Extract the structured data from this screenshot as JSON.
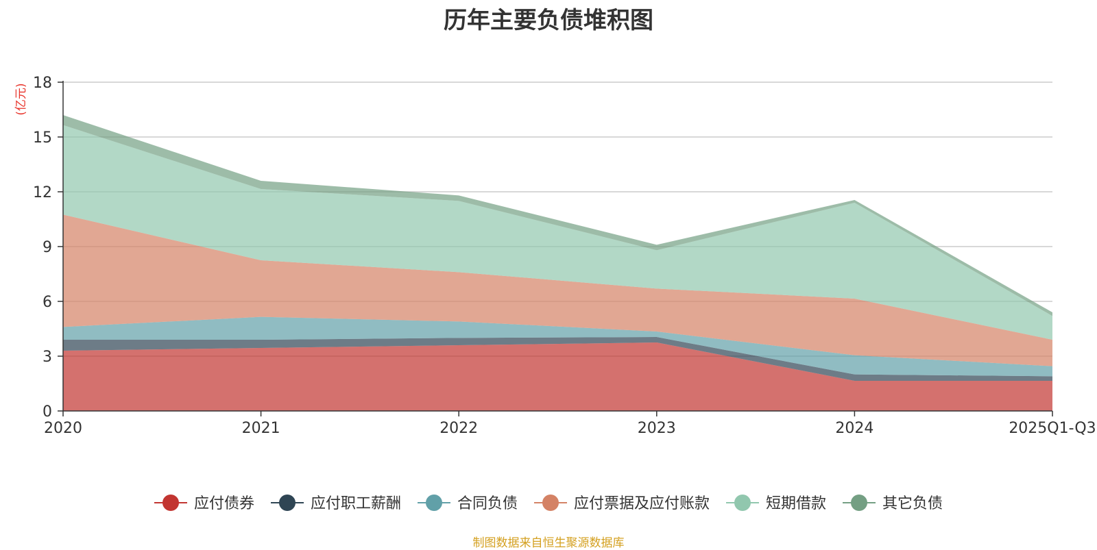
{
  "chart_data": {
    "type": "area",
    "stacked": true,
    "title": "历年主要负债堆积图",
    "ylabel": "(亿元)",
    "xlabel": "",
    "ylim": [
      0,
      18
    ],
    "yticks": [
      0,
      3,
      6,
      9,
      12,
      15,
      18
    ],
    "categories": [
      "2020",
      "2021",
      "2022",
      "2023",
      "2024",
      "2025Q1-Q3"
    ],
    "grid": true,
    "legend_position": "bottom",
    "series": [
      {
        "name": "应付债券",
        "color": "#c23531",
        "values": [
          3.3,
          3.45,
          3.6,
          3.75,
          1.65,
          1.65
        ]
      },
      {
        "name": "应付职工薪酬",
        "color": "#2f4554",
        "values": [
          0.6,
          0.45,
          0.4,
          0.3,
          0.35,
          0.25
        ]
      },
      {
        "name": "合同负债",
        "color": "#61a0a8",
        "values": [
          0.7,
          1.25,
          0.9,
          0.3,
          1.05,
          0.55
        ]
      },
      {
        "name": "应付票据及应付账款",
        "color": "#d48265",
        "values": [
          6.15,
          3.1,
          2.7,
          2.35,
          3.1,
          1.45
        ]
      },
      {
        "name": "短期借款",
        "color": "#91c7ae",
        "values": [
          4.9,
          3.9,
          3.9,
          2.1,
          5.25,
          1.3
        ]
      },
      {
        "name": "其它负债",
        "color": "#749f83",
        "values": [
          0.55,
          0.45,
          0.3,
          0.3,
          0.15,
          0.2
        ]
      }
    ]
  },
  "source_note": "制图数据来自恒生聚源数据库"
}
